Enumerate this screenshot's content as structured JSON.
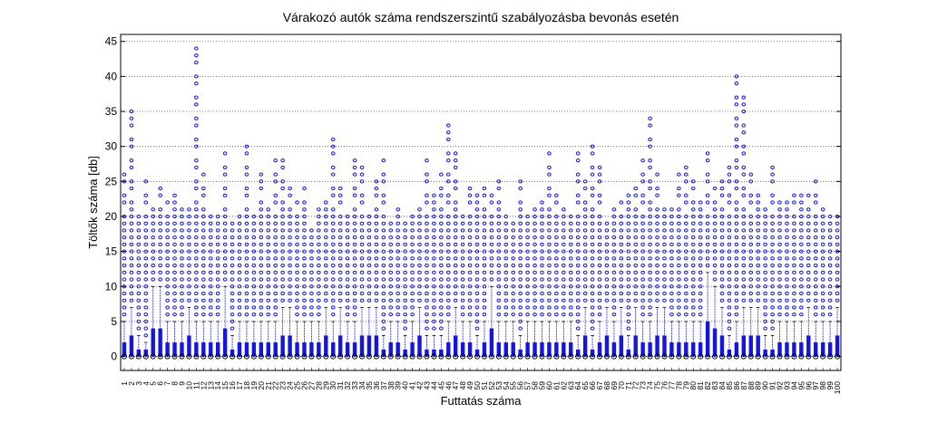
{
  "chart_data": {
    "type": "boxplot",
    "title": "Várakozó autók száma rendszerszintű szabályozásba bevonás esetén",
    "xlabel": "Futtatás száma",
    "ylabel": "Töltők száma [db]",
    "ylim": [
      -2,
      46
    ],
    "yticks": [
      0,
      5,
      10,
      15,
      20,
      25,
      30,
      35,
      40,
      45
    ],
    "grid": "y-dotted",
    "categories": [
      "1",
      "2",
      "3",
      "4",
      "5",
      "6",
      "7",
      "8",
      "9",
      "10",
      "11",
      "12",
      "13",
      "14",
      "15",
      "16",
      "17",
      "18",
      "19",
      "20",
      "21",
      "22",
      "23",
      "24",
      "25",
      "26",
      "27",
      "28",
      "29",
      "30",
      "31",
      "32",
      "33",
      "34",
      "35",
      "36",
      "37",
      "38",
      "39",
      "40",
      "41",
      "42",
      "43",
      "44",
      "45",
      "46",
      "47",
      "48",
      "49",
      "50",
      "51",
      "52",
      "53",
      "54",
      "55",
      "56",
      "57",
      "58",
      "59",
      "60",
      "61",
      "62",
      "63",
      "64",
      "65",
      "66",
      "67",
      "68",
      "69",
      "70",
      "71",
      "72",
      "73",
      "74",
      "75",
      "76",
      "77",
      "78",
      "79",
      "80",
      "81",
      "82",
      "83",
      "84",
      "85",
      "86",
      "87",
      "88",
      "89",
      "90",
      "91",
      "92",
      "93",
      "94",
      "95",
      "96",
      "97",
      "98",
      "99",
      "100"
    ],
    "q3": [
      2,
      3,
      1,
      1,
      4,
      4,
      2,
      2,
      2,
      3,
      2,
      2,
      2,
      2,
      4,
      1,
      2,
      2,
      2,
      2,
      2,
      2,
      3,
      3,
      2,
      2,
      2,
      2,
      3,
      2,
      3,
      2,
      2,
      3,
      3,
      3,
      1,
      2,
      2,
      1,
      2,
      3,
      1,
      1,
      1,
      2,
      3,
      2,
      2,
      1,
      2,
      4,
      2,
      2,
      2,
      1,
      2,
      2,
      2,
      2,
      2,
      2,
      2,
      1,
      3,
      1,
      2,
      3,
      2,
      3,
      1,
      3,
      2,
      2,
      3,
      3,
      2,
      2,
      2,
      2,
      2,
      5,
      4,
      3,
      1,
      2,
      3,
      3,
      3,
      1,
      1,
      2,
      2,
      2,
      2,
      3,
      2,
      2,
      2,
      3
    ],
    "whisker_high": [
      5,
      7,
      3,
      2,
      10,
      10,
      5,
      5,
      5,
      7,
      5,
      5,
      5,
      5,
      10,
      3,
      5,
      5,
      5,
      5,
      5,
      5,
      7,
      7,
      5,
      5,
      5,
      5,
      7,
      5,
      7,
      5,
      5,
      7,
      7,
      7,
      3,
      5,
      5,
      3,
      5,
      7,
      3,
      3,
      3,
      5,
      7,
      5,
      5,
      3,
      5,
      10,
      5,
      5,
      5,
      3,
      5,
      5,
      5,
      5,
      5,
      5,
      5,
      3,
      7,
      3,
      5,
      7,
      5,
      7,
      3,
      7,
      5,
      5,
      7,
      7,
      5,
      5,
      5,
      5,
      5,
      12,
      10,
      7,
      3,
      5,
      7,
      7,
      7,
      3,
      3,
      5,
      5,
      5,
      5,
      7,
      5,
      5,
      5,
      7
    ],
    "outlier_max": [
      26,
      35,
      20,
      25,
      21,
      24,
      22,
      23,
      21,
      21,
      44,
      26,
      20,
      20,
      29,
      19,
      20,
      30,
      20,
      26,
      21,
      28,
      28,
      24,
      22,
      24,
      18,
      21,
      22,
      31,
      24,
      20,
      28,
      27,
      20,
      25,
      28,
      19,
      21,
      19,
      20,
      21,
      28,
      23,
      26,
      33,
      29,
      20,
      24,
      23,
      24,
      23,
      25,
      20,
      19,
      25,
      20,
      21,
      22,
      29,
      23,
      21,
      20,
      29,
      25,
      30,
      27,
      19,
      21,
      22,
      23,
      24,
      28,
      34,
      26,
      21,
      21,
      26,
      27,
      25,
      22,
      29,
      24,
      25,
      27,
      40,
      37,
      26,
      23,
      21,
      27,
      22,
      22,
      23,
      23,
      23,
      25,
      21,
      20,
      20
    ]
  }
}
